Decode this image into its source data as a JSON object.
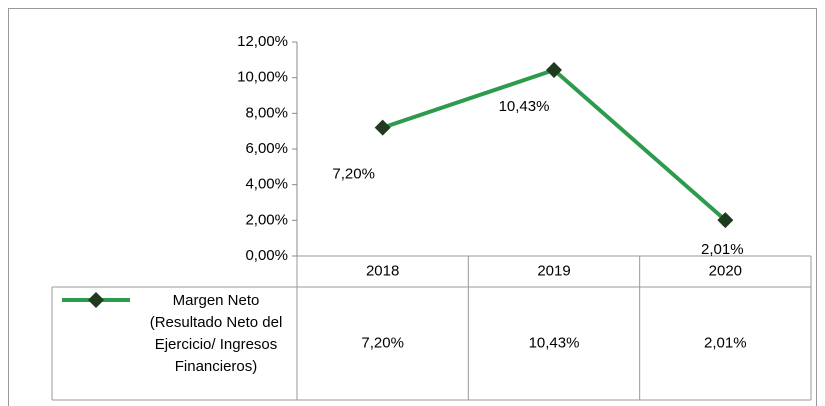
{
  "chart_data": {
    "type": "line",
    "categories": [
      "2018",
      "2019",
      "2020"
    ],
    "series": [
      {
        "name": "Margen Neto (Resultado Neto del Ejercicio/ Ingresos Financieros)",
        "color": "#2e9a4e",
        "marker_color": "#1e3b1e",
        "values": [
          7.2,
          10.43,
          2.01
        ],
        "value_labels": [
          "7,20%",
          "10,43%",
          "2,01%"
        ]
      }
    ],
    "ylim": [
      0,
      12
    ],
    "yticks": [
      {
        "value": 0,
        "label": "0,00%"
      },
      {
        "value": 2,
        "label": "2,00%"
      },
      {
        "value": 4,
        "label": "4,00%"
      },
      {
        "value": 6,
        "label": "6,00%"
      },
      {
        "value": 8,
        "label": "8,00%"
      },
      {
        "value": 10,
        "label": "10,00%"
      },
      {
        "value": 12,
        "label": "12,00%"
      }
    ],
    "data_table": true
  }
}
